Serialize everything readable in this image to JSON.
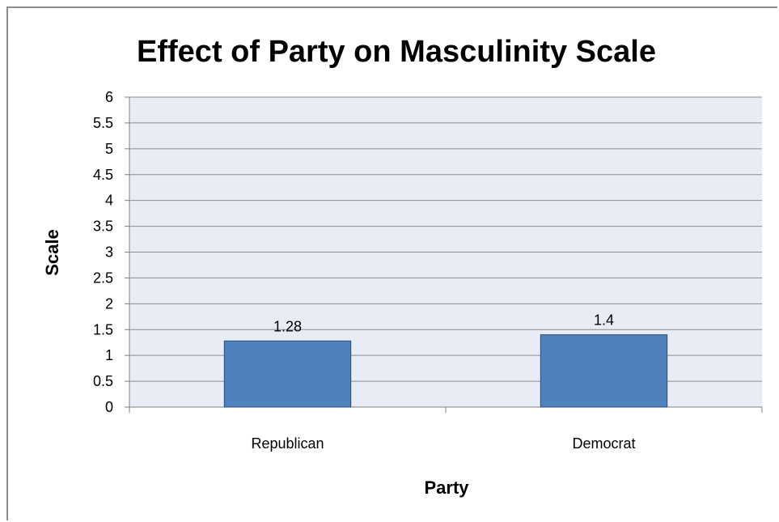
{
  "chart_data": {
    "type": "bar",
    "title": "Effect of Party on Masculinity Scale",
    "xlabel": "Party",
    "ylabel": "Scale",
    "categories": [
      "Republican",
      "Democrat"
    ],
    "values": [
      1.28,
      1.4
    ],
    "data_labels": [
      "1.28",
      "1.4"
    ],
    "ylim": [
      0,
      6
    ],
    "yticks": [
      0,
      0.5,
      1,
      1.5,
      2,
      2.5,
      3,
      3.5,
      4,
      4.5,
      5,
      5.5,
      6
    ],
    "ytick_labels": [
      "0",
      "0.5",
      "1",
      "1.5",
      "2",
      "2.5",
      "3",
      "3.5",
      "4",
      "4.5",
      "5",
      "5.5",
      "6"
    ],
    "grid": true,
    "legend": "none",
    "colors": {
      "bar_fill": "#4f81bd",
      "bar_stroke": "#2c4d75",
      "plot_background": "#e8edf5",
      "gridline": "#8c8c8c"
    }
  }
}
